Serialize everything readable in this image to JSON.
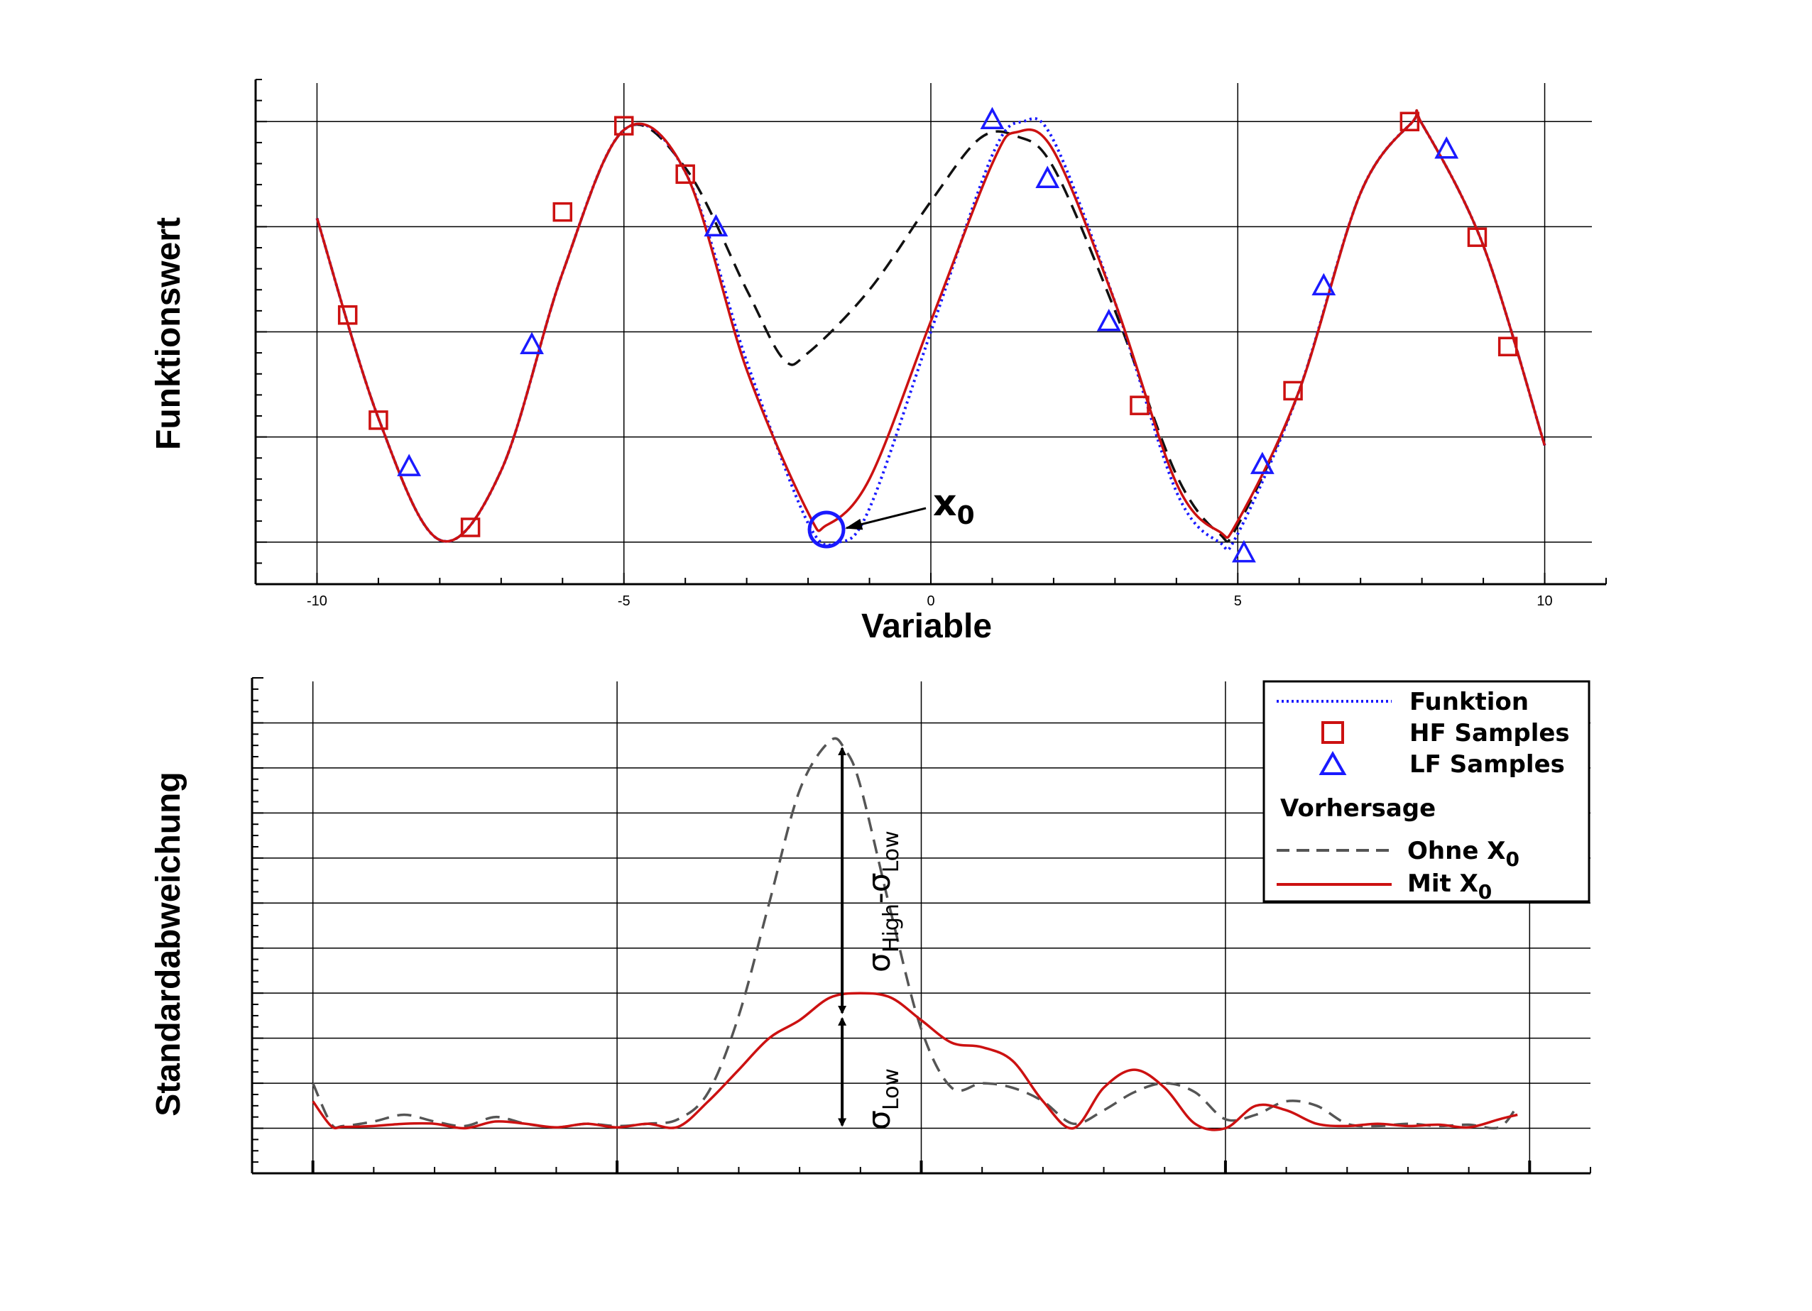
{
  "chart_data": [
    {
      "type": "line",
      "xlabel": "Variable",
      "ylabel": "Funktionswert",
      "xlim": [
        -11,
        11
      ],
      "xticks": [
        -10,
        -5,
        0,
        5,
        10
      ],
      "xtick_labels": [
        "-10",
        "-5",
        "0",
        "5",
        "10"
      ],
      "ylim": [
        -1.2,
        1.2
      ],
      "grid": true,
      "series": [
        {
          "name": "Funktion",
          "style": "dotted",
          "color": "#1a1aff",
          "x": [
            -10,
            -9,
            -8,
            -7,
            -6,
            -5,
            -4,
            -3,
            -2,
            -1.5,
            -1,
            0,
            1,
            1.5,
            2,
            3,
            4,
            4.7,
            5,
            6,
            7,
            7.85,
            8,
            9,
            10
          ],
          "y": [
            0.54,
            -0.41,
            -0.99,
            -0.66,
            0.28,
            0.96,
            0.76,
            -0.14,
            -0.91,
            -1.0,
            -0.84,
            0.0,
            0.84,
            1.0,
            0.91,
            0.14,
            -0.76,
            -1.0,
            -0.96,
            -0.28,
            0.66,
            1.0,
            0.99,
            0.41,
            -0.54
          ]
        },
        {
          "name": "Ohne X0",
          "style": "dashed",
          "color": "#111111",
          "x": [
            -10,
            -9,
            -8,
            -7,
            -6,
            -5,
            -4,
            -3,
            -2.4,
            -2,
            -1,
            0,
            0.8,
            1.4,
            2,
            3,
            4,
            4.7,
            5,
            6,
            7,
            7.85,
            8,
            9,
            10
          ],
          "y": [
            0.54,
            -0.41,
            -0.99,
            -0.66,
            0.28,
            0.96,
            0.78,
            0.2,
            -0.13,
            -0.1,
            0.2,
            0.62,
            0.92,
            0.93,
            0.78,
            0.1,
            -0.68,
            -0.96,
            -0.92,
            -0.28,
            0.66,
            1.0,
            0.99,
            0.41,
            -0.54
          ]
        },
        {
          "name": "Mit X0",
          "style": "solid",
          "color": "#cc1111",
          "x": [
            -10,
            -9,
            -8,
            -7,
            -6,
            -5,
            -4,
            -3,
            -2,
            -1.7,
            -1,
            0,
            1,
            1.4,
            2,
            3,
            4,
            4.7,
            5,
            6,
            7,
            7.85,
            8,
            9,
            10
          ],
          "y": [
            0.54,
            -0.41,
            -0.99,
            -0.66,
            0.28,
            0.96,
            0.76,
            -0.18,
            -0.86,
            -0.92,
            -0.7,
            0.05,
            0.8,
            0.95,
            0.86,
            0.14,
            -0.72,
            -0.95,
            -0.9,
            -0.28,
            0.66,
            1.0,
            0.99,
            0.41,
            -0.54
          ]
        }
      ],
      "hf_samples": {
        "x": [
          -9.5,
          -9.0,
          -7.5,
          -6.0,
          -5.0,
          -4.0,
          3.4,
          5.9,
          7.8,
          8.9,
          9.4
        ],
        "y": [
          0.08,
          -0.42,
          -0.93,
          0.57,
          0.98,
          0.75,
          -0.35,
          -0.28,
          1.0,
          0.45,
          -0.07
        ]
      },
      "lf_samples": {
        "x": [
          -8.5,
          -6.5,
          -3.5,
          1.0,
          1.9,
          2.9,
          5.1,
          5.4,
          6.4,
          8.4
        ],
        "y": [
          -0.64,
          -0.06,
          0.5,
          1.01,
          0.73,
          0.05,
          -1.05,
          -0.63,
          0.22,
          0.87
        ]
      },
      "annotation": {
        "label": "x",
        "subscript": "0",
        "point_x": -1.7,
        "point_y": -0.94
      }
    },
    {
      "type": "line",
      "ylabel": "Standardabweichung",
      "xlim": [
        -11,
        11
      ],
      "ylim": [
        -0.01,
        0.1
      ],
      "grid": true,
      "legend_position": "top-right",
      "series": [
        {
          "name": "Ohne X0",
          "style": "dashed",
          "color": "#555555",
          "x": [
            -10,
            -9.7,
            -9.5,
            -9,
            -8.5,
            -8,
            -7.5,
            -7,
            -6.5,
            -6,
            -5.5,
            -5,
            -4.5,
            -4,
            -3.5,
            -3,
            -2.5,
            -2,
            -1.5,
            -1.25,
            -1,
            -0.5,
            0,
            0.5,
            1,
            1.5,
            2,
            2.5,
            3,
            3.5,
            4,
            4.5,
            5,
            5.5,
            6,
            6.5,
            7,
            7.5,
            8,
            8.5,
            9,
            9.5,
            9.8
          ],
          "y": [
            0.01,
            0.001,
            0.0005,
            0.0015,
            0.003,
            0.0015,
            0.0005,
            0.0025,
            0.001,
            0.0002,
            0.001,
            0.0005,
            0.001,
            0.002,
            0.008,
            0.025,
            0.05,
            0.075,
            0.086,
            0.084,
            0.076,
            0.048,
            0.022,
            0.009,
            0.01,
            0.009,
            0.006,
            0.001,
            0.004,
            0.008,
            0.01,
            0.008,
            0.002,
            0.003,
            0.006,
            0.005,
            0.001,
            0.0005,
            0.001,
            0.0005,
            0.0008,
            0.0002,
            0.005
          ]
        },
        {
          "name": "Mit X0",
          "style": "solid",
          "color": "#cc1111",
          "x": [
            -10,
            -9.7,
            -9.5,
            -9,
            -8.5,
            -8,
            -7.5,
            -7,
            -6.5,
            -6,
            -5.5,
            -5,
            -4.5,
            -4,
            -3.5,
            -3,
            -2.5,
            -2,
            -1.5,
            -1,
            -0.5,
            0,
            0.5,
            1,
            1.5,
            2,
            2.5,
            3,
            3.5,
            4,
            4.5,
            5,
            5.5,
            6,
            6.5,
            7,
            7.5,
            8,
            8.5,
            9,
            9.5,
            9.8
          ],
          "y": [
            0.006,
            0.0005,
            0.0003,
            0.0005,
            0.001,
            0.001,
            0.0,
            0.0015,
            0.001,
            0.0002,
            0.001,
            0.0002,
            0.001,
            0.0003,
            0.006,
            0.013,
            0.02,
            0.024,
            0.029,
            0.03,
            0.029,
            0.024,
            0.019,
            0.018,
            0.015,
            0.006,
            0.0,
            0.009,
            0.013,
            0.009,
            0.001,
            0.0,
            0.005,
            0.004,
            0.001,
            0.0005,
            0.001,
            0.0005,
            0.0008,
            0.0002,
            0.002,
            0.003
          ]
        }
      ],
      "annotation_sigma_diff": {
        "x": -1.3,
        "y_top": 0.085,
        "y_bottom": 0.025
      },
      "annotation_sigma_low": {
        "x": -1.3,
        "y_top": 0.025,
        "y_bottom": 0.0
      }
    }
  ],
  "legend": {
    "funktion": "Funktion",
    "hf_samples": "HF Samples",
    "lf_samples": "LF Samples",
    "heading": "Vorhersage",
    "ohne_prefix": "Ohne X",
    "ohne_sub": "0",
    "mit_prefix": "Mit X",
    "mit_sub": "0"
  },
  "anno": {
    "sigma_diff_a": "σ",
    "sigma_diff_sub1": "High",
    "sigma_diff_mid": "-σ",
    "sigma_diff_sub2": "Low",
    "sigma_low": "σ",
    "sigma_low_sub": "Low"
  },
  "colors": {
    "red": "#cc1111",
    "blue": "#1a1aff",
    "grey": "#555555",
    "black": "#111111"
  }
}
